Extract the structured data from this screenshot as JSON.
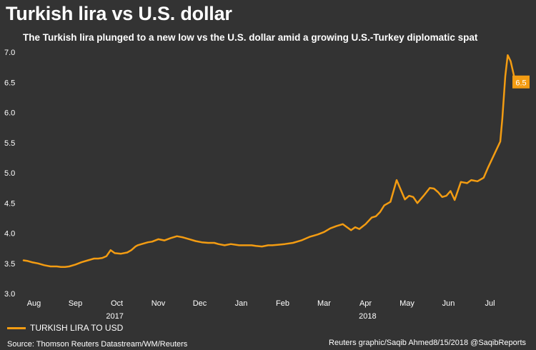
{
  "header": {
    "title": "Turkish lira vs U.S. dollar",
    "subtitle": "The Turkish lira plunged to a new low vs the U.S. dollar amid a growing U.S.-Turkey diplomatic spat"
  },
  "legend": {
    "label": "TURKISH LIRA TO USD",
    "color": "#f39c12"
  },
  "footer": {
    "source": "Source: Thomson Reuters Datastream/WM/Reuters",
    "credit": "Reuters graphic/Saqib Ahmed8/15/2018 @SaqibReports"
  },
  "chart_data": {
    "type": "line",
    "title": "Turkish lira vs U.S. dollar",
    "xlabel": "",
    "ylabel": "",
    "ylim": [
      3.0,
      7.0
    ],
    "yticks": [
      "3.0",
      "3.5",
      "4.0",
      "4.5",
      "5.0",
      "5.5",
      "6.0",
      "6.5",
      "7.0"
    ],
    "xtick_labels": [
      "Aug",
      "Sep",
      "Oct",
      "Nov",
      "Dec",
      "Jan",
      "Feb",
      "Mar",
      "Apr",
      "May",
      "Jun",
      "Jul"
    ],
    "year_labels": [
      "2017",
      "2018"
    ],
    "end_label": "6.5",
    "line_color": "#f39c12",
    "series": [
      {
        "name": "TURKISH LIRA TO USD",
        "x_unit": "months since Aug 1 2017",
        "x": [
          0.0,
          0.1,
          0.2,
          0.35,
          0.5,
          0.65,
          0.8,
          0.9,
          1.0,
          1.1,
          1.25,
          1.4,
          1.55,
          1.7,
          1.8,
          1.9,
          2.0,
          2.1,
          2.2,
          2.35,
          2.5,
          2.6,
          2.7,
          2.75,
          2.85,
          3.0,
          3.1,
          3.25,
          3.4,
          3.55,
          3.7,
          3.85,
          4.0,
          4.15,
          4.3,
          4.45,
          4.6,
          4.7,
          4.85,
          5.0,
          5.2,
          5.4,
          5.5,
          5.6,
          5.75,
          5.9,
          6.0,
          6.15,
          6.3,
          6.5,
          6.7,
          6.9,
          7.0,
          7.1,
          7.25,
          7.4,
          7.55,
          7.7,
          7.9,
          8.0,
          8.1,
          8.25,
          8.4,
          8.5,
          8.6,
          8.7,
          8.85,
          9.0,
          9.1,
          9.2,
          9.3,
          9.4,
          9.5,
          9.65,
          9.8,
          9.9,
          10.0,
          10.1,
          10.2,
          10.3,
          10.4,
          10.55,
          10.7,
          10.8,
          10.95,
          11.1,
          11.2,
          11.35,
          11.5,
          11.55,
          11.62,
          11.68,
          11.75,
          11.85,
          11.95,
          12.05
        ],
        "y": [
          3.55,
          3.54,
          3.52,
          3.5,
          3.47,
          3.45,
          3.45,
          3.44,
          3.44,
          3.45,
          3.48,
          3.52,
          3.55,
          3.58,
          3.58,
          3.59,
          3.62,
          3.72,
          3.67,
          3.66,
          3.68,
          3.72,
          3.78,
          3.8,
          3.82,
          3.85,
          3.86,
          3.9,
          3.88,
          3.92,
          3.95,
          3.93,
          3.9,
          3.87,
          3.85,
          3.84,
          3.84,
          3.82,
          3.8,
          3.82,
          3.8,
          3.8,
          3.8,
          3.79,
          3.78,
          3.8,
          3.8,
          3.81,
          3.82,
          3.84,
          3.88,
          3.94,
          3.96,
          3.98,
          4.02,
          4.08,
          4.12,
          4.15,
          4.05,
          4.1,
          4.07,
          4.15,
          4.26,
          4.28,
          4.35,
          4.46,
          4.52,
          4.88,
          4.72,
          4.56,
          4.62,
          4.6,
          4.5,
          4.62,
          4.75,
          4.74,
          4.68,
          4.6,
          4.62,
          4.7,
          4.55,
          4.85,
          4.83,
          4.88,
          4.86,
          4.92,
          5.08,
          5.3,
          5.52,
          5.9,
          6.6,
          6.95,
          6.85,
          6.55,
          6.45,
          6.5
        ]
      }
    ]
  }
}
